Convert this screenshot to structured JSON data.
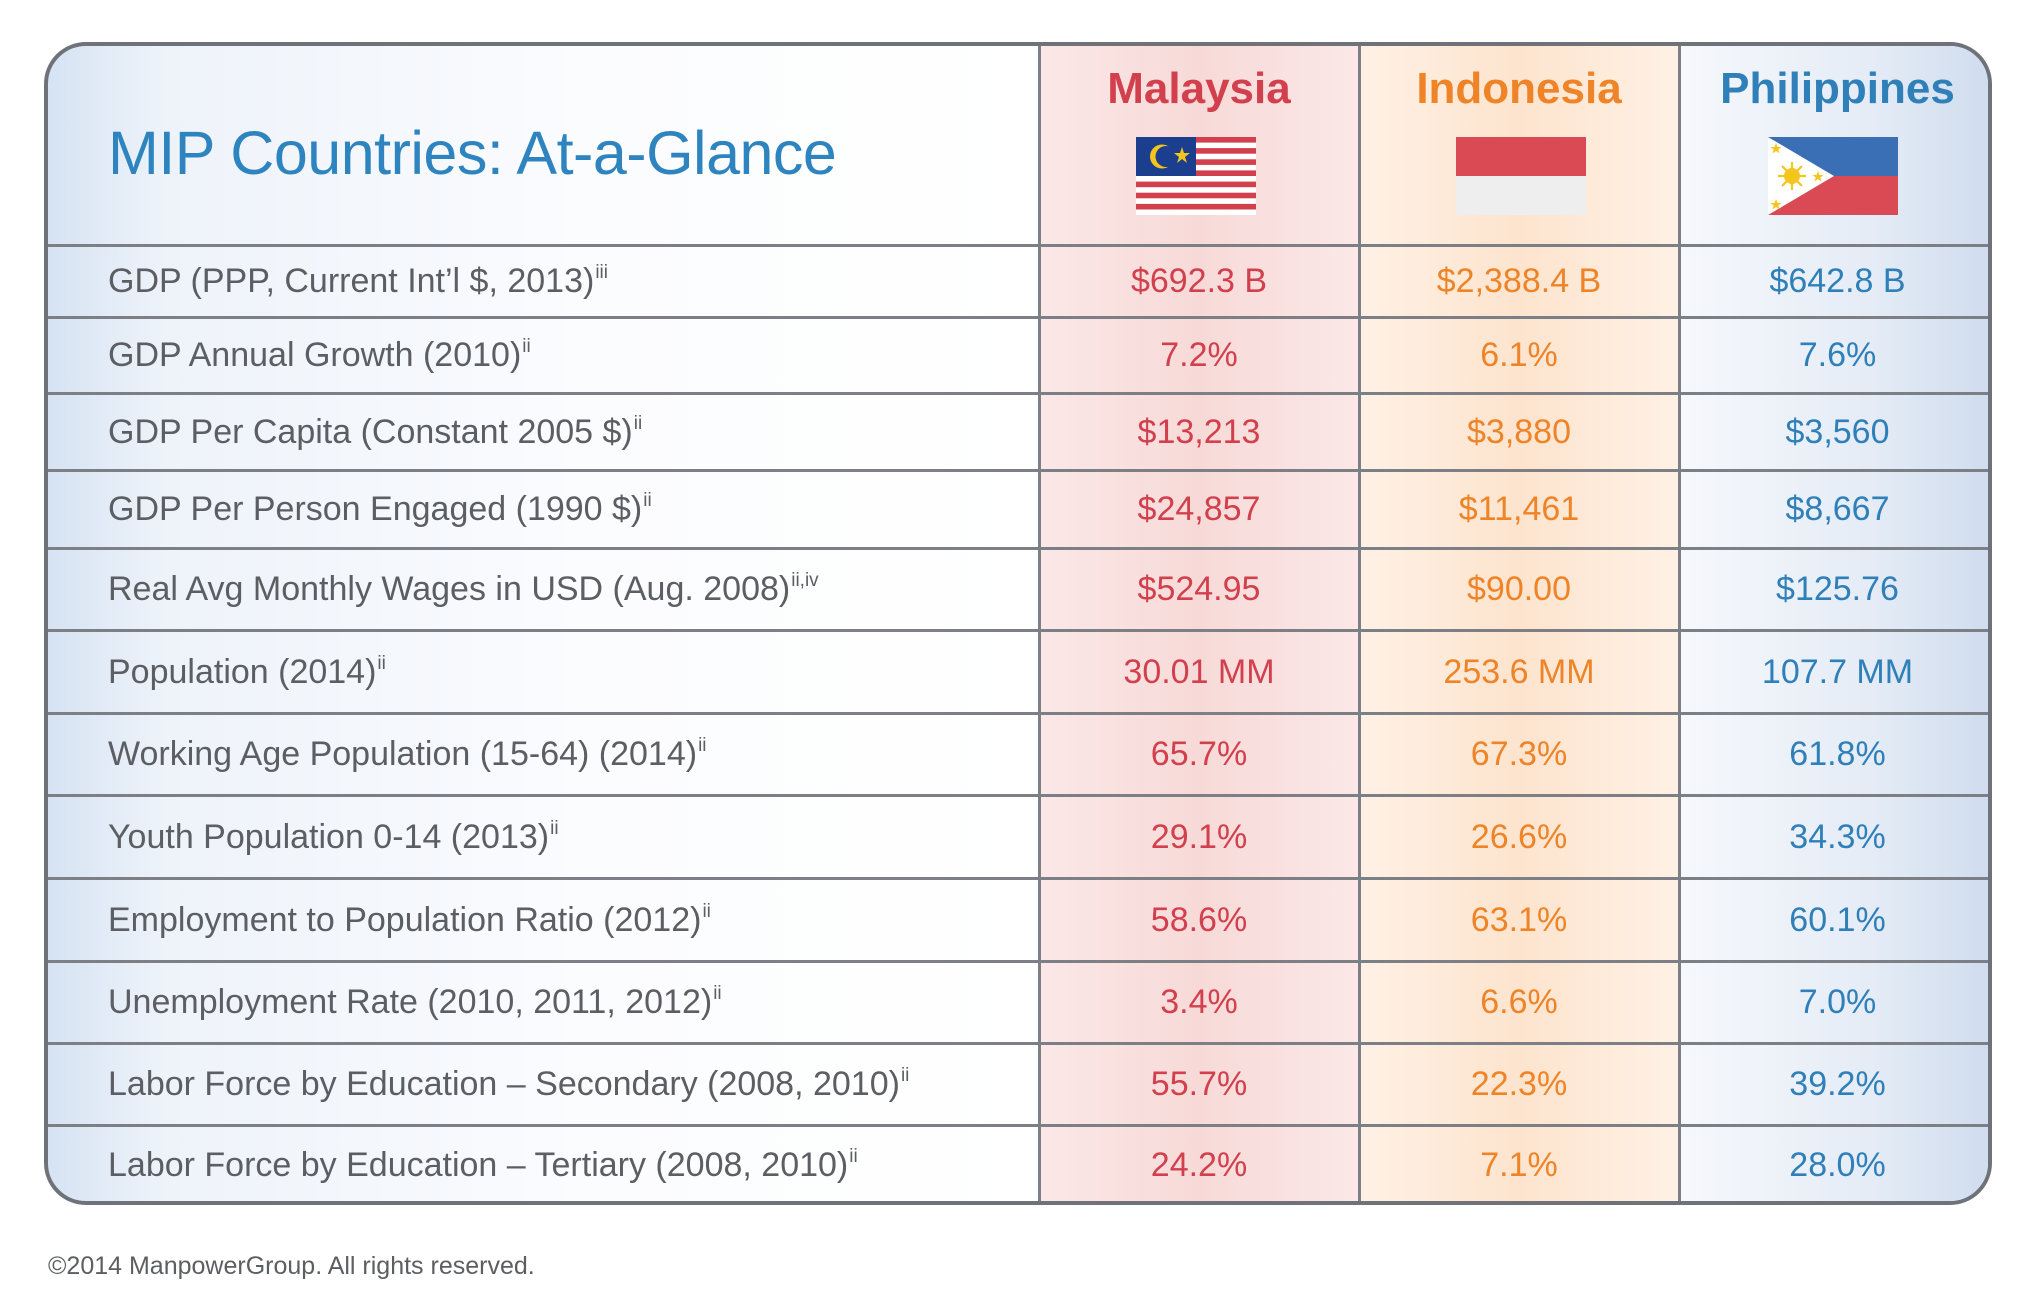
{
  "title": "MIP Countries: At-a-Glance",
  "footer": "©2014 ManpowerGroup. All rights reserved.",
  "colors": {
    "title": "#2e84bf",
    "malaysia": "#d2404e",
    "indonesia": "#ee8427",
    "philippines": "#2f7fb9",
    "label": "#5b5e62",
    "border": "#6f7379"
  },
  "flags": {
    "malaysia": "malaysia-flag",
    "indonesia": "indonesia-flag",
    "philippines": "philippines-flag"
  },
  "chart_data": {
    "type": "table",
    "title": "MIP Countries: At-a-Glance",
    "columns": [
      "Malaysia",
      "Indonesia",
      "Philippines"
    ],
    "rows": [
      {
        "label": "GDP (PPP, Current Int’l $, 2013)",
        "note": "iii",
        "values": [
          "$692.3 B",
          "$2,388.4 B",
          "$642.8 B"
        ]
      },
      {
        "label": "GDP Annual Growth (2010)",
        "note": "ii",
        "values": [
          "7.2%",
          "6.1%",
          "7.6%"
        ]
      },
      {
        "label": "GDP Per Capita (Constant 2005 $)",
        "note": "ii",
        "values": [
          "$13,213",
          "$3,880",
          "$3,560"
        ]
      },
      {
        "label": "GDP Per Person Engaged (1990 $)",
        "note": "ii",
        "values": [
          "$24,857",
          "$11,461",
          "$8,667"
        ]
      },
      {
        "label": "Real Avg Monthly Wages in USD (Aug. 2008)",
        "note": "ii,iv",
        "values": [
          "$524.95",
          "$90.00",
          "$125.76"
        ]
      },
      {
        "label": "Population (2014)",
        "note": "ii",
        "values": [
          "30.01 MM",
          "253.6 MM",
          "107.7 MM"
        ]
      },
      {
        "label": "Working Age Population (15-64) (2014)",
        "note": "ii",
        "values": [
          "65.7%",
          "67.3%",
          "61.8%"
        ]
      },
      {
        "label": "Youth Population 0-14 (2013)",
        "note": "ii",
        "values": [
          "29.1%",
          "26.6%",
          "34.3%"
        ]
      },
      {
        "label": "Employment to Population Ratio (2012)",
        "note": "ii",
        "values": [
          "58.6%",
          "63.1%",
          "60.1%"
        ]
      },
      {
        "label": "Unemployment Rate (2010, 2011, 2012)",
        "note": "ii",
        "values": [
          "3.4%",
          "6.6%",
          "7.0%"
        ]
      },
      {
        "label": "Labor Force by Education – Secondary (2008, 2010)",
        "note": "ii",
        "values": [
          "55.7%",
          "22.3%",
          "39.2%"
        ]
      },
      {
        "label": "Labor Force by Education – Tertiary (2008, 2010)",
        "note": "ii",
        "values": [
          "24.2%",
          "7.1%",
          "28.0%"
        ]
      }
    ]
  }
}
